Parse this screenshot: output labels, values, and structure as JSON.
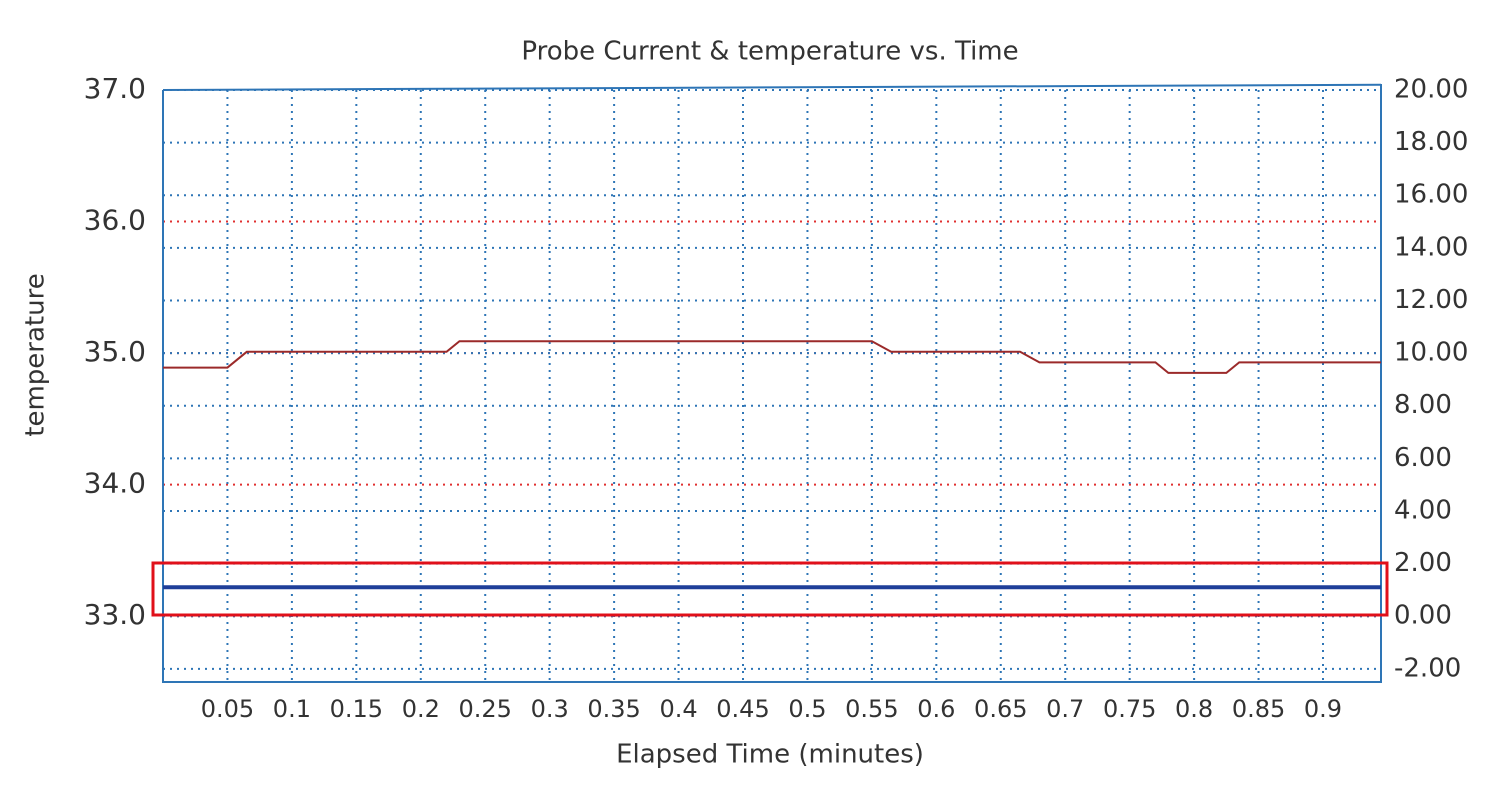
{
  "chart_data": {
    "type": "line",
    "title": "Probe Current & temperature vs. Time",
    "x_label": "Elapsed Time (minutes)",
    "y_label": "temperature",
    "xlim": [
      0,
      0.945
    ],
    "xticks": [
      0.05,
      0.1,
      0.15,
      0.2,
      0.25,
      0.3,
      0.35,
      0.4,
      0.45,
      0.5,
      0.55,
      0.6,
      0.65,
      0.7,
      0.75,
      0.8,
      0.85,
      0.9
    ],
    "ylim": [
      32.5,
      37.0
    ],
    "yticks": [
      {
        "value": 33,
        "label": "33.0"
      },
      {
        "value": 34,
        "label": "34.0"
      },
      {
        "value": 35,
        "label": "35.0"
      },
      {
        "value": 36,
        "label": "36.0"
      },
      {
        "value": 37,
        "label": "37.0"
      }
    ],
    "y2lim": [
      -2.5,
      20
    ],
    "y2ticks": [
      {
        "value": -2,
        "label": "-2.00"
      },
      {
        "value": 0,
        "label": "0.00"
      },
      {
        "value": 2,
        "label": "2.00"
      },
      {
        "value": 4,
        "label": "4.00"
      },
      {
        "value": 6,
        "label": "6.00"
      },
      {
        "value": 8,
        "label": "8.00"
      },
      {
        "value": 10,
        "label": "10.00"
      },
      {
        "value": 12,
        "label": "12.00"
      },
      {
        "value": 14,
        "label": "14.00"
      },
      {
        "value": 16,
        "label": "16.00"
      },
      {
        "value": 18,
        "label": "18.00"
      },
      {
        "value": 20,
        "label": "20.00"
      }
    ],
    "grid": true,
    "series": [
      {
        "color": "#9b2a2a",
        "x": [
          0,
          0.05,
          0.065,
          0.22,
          0.23,
          0.55,
          0.565,
          0.665,
          0.68,
          0.77,
          0.78,
          0.825,
          0.835,
          0.945
        ],
        "values": [
          34.89,
          34.89,
          35.01,
          35.01,
          35.09,
          35.09,
          35.01,
          35.01,
          34.93,
          34.93,
          34.85,
          34.85,
          34.93,
          34.93
        ]
      },
      {
        "color": "#1f3f99",
        "axis": "y2",
        "x": [
          0,
          0.945
        ],
        "values": [
          1.1,
          1.1
        ]
      },
      {
        "color": "#2e75b6",
        "axis": "y2",
        "x": [
          0,
          0.945
        ],
        "values": [
          20.0,
          20.2
        ]
      }
    ]
  }
}
